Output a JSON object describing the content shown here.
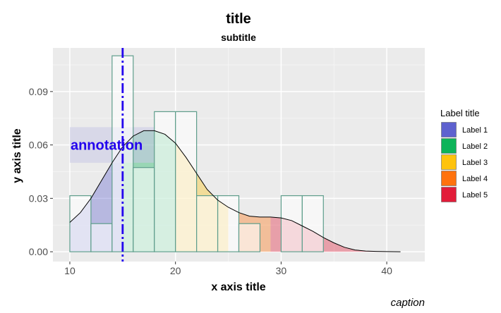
{
  "chart_data": {
    "type": "histogram-density",
    "title": "title",
    "subtitle": "subtitle",
    "xlabel": "x axis title",
    "ylabel": "y axis title",
    "caption": "caption",
    "xlim": [
      8.4,
      43.6
    ],
    "ylim": [
      -0.0055,
      0.1145
    ],
    "xticks": [
      10,
      20,
      30,
      40
    ],
    "xtick_labels": [
      "10",
      "20",
      "30",
      "40"
    ],
    "yticks": [
      0.0,
      0.03,
      0.06,
      0.09
    ],
    "ytick_labels": [
      "0.00",
      "0.03",
      "0.06",
      "0.09"
    ],
    "grid": true,
    "legend": {
      "title": "Label title",
      "position": "right",
      "entries": [
        {
          "label": "Label 1",
          "color": "#5558CC"
        },
        {
          "label": "Label 2",
          "color": "#00B050"
        },
        {
          "label": "Label 3",
          "color": "#FFC000"
        },
        {
          "label": "Label 4",
          "color": "#FF6A00"
        },
        {
          "label": "Label 5",
          "color": "#E0102E"
        }
      ]
    },
    "histogram_bins": [
      {
        "x0": 10,
        "x1": 12,
        "density": 0.0315
      },
      {
        "x0": 12,
        "x1": 14,
        "density": 0.0158
      },
      {
        "x0": 14,
        "x1": 16,
        "density": 0.1101
      },
      {
        "x0": 16,
        "x1": 18,
        "density": 0.0473
      },
      {
        "x0": 18,
        "x1": 20,
        "density": 0.0787
      },
      {
        "x0": 20,
        "x1": 22,
        "density": 0.0787
      },
      {
        "x0": 22,
        "x1": 24,
        "density": 0.0315
      },
      {
        "x0": 24,
        "x1": 26,
        "density": 0.0315
      },
      {
        "x0": 26,
        "x1": 28,
        "density": 0.0158
      },
      {
        "x0": 28,
        "x1": 30,
        "density": 0.0
      },
      {
        "x0": 30,
        "x1": 32,
        "density": 0.0315
      },
      {
        "x0": 32,
        "x1": 34,
        "density": 0.0315
      }
    ],
    "density_curve": {
      "x": [
        10,
        11,
        12,
        13,
        14,
        15,
        16,
        17,
        18,
        19,
        20,
        21,
        22,
        23,
        24,
        25,
        26,
        27,
        28,
        29,
        30,
        31,
        32,
        33,
        34,
        35,
        36,
        37,
        38,
        39,
        40,
        41.3
      ],
      "y": [
        0.0165,
        0.022,
        0.03,
        0.04,
        0.05,
        0.059,
        0.065,
        0.068,
        0.068,
        0.066,
        0.061,
        0.053,
        0.044,
        0.035,
        0.029,
        0.025,
        0.022,
        0.02,
        0.0195,
        0.0195,
        0.019,
        0.0175,
        0.0145,
        0.0115,
        0.008,
        0.005,
        0.0025,
        0.001,
        0.0004,
        0.0002,
        0.0001,
        0.0
      ]
    },
    "fill_regions": [
      {
        "label": "Label 1",
        "x0": 10,
        "x1": 15,
        "color": "#5558CC"
      },
      {
        "label": "Label 2",
        "x0": 15,
        "x1": 20,
        "color": "#00B050"
      },
      {
        "label": "Label 3",
        "x0": 20,
        "x1": 25,
        "color": "#FFC000"
      },
      {
        "label": "Label 4",
        "x0": 26,
        "x1": 29,
        "color": "#FF6A00"
      },
      {
        "label": "Label 5",
        "x0": 29,
        "x1": 41.3,
        "color": "#E0102E"
      }
    ],
    "vline": {
      "x": 15,
      "color": "#2200EE",
      "style": "dashdot"
    },
    "annotation": {
      "text": "annotation",
      "x": 10,
      "y": 0.06,
      "color": "#2200EE",
      "box": {
        "x0": 10,
        "x1": 18,
        "y0": 0.05,
        "y1": 0.07
      }
    }
  }
}
